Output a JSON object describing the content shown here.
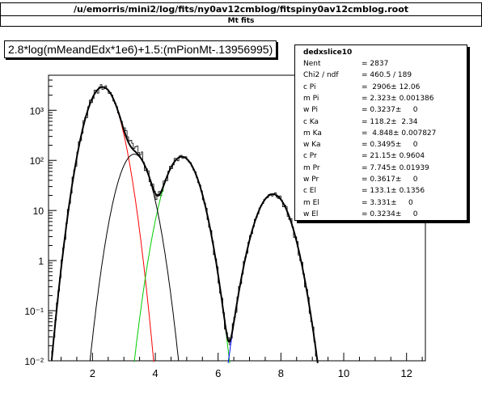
{
  "window": {
    "title": "/u/emorris/mini2/log/fits/ny0av12cmblog/fitspiny0av12cmblog.root",
    "subtitle": "Mt fits"
  },
  "formula": "2.8*log(mMeandEdx*1e6)+1.5:(mPionMt-.13956995)",
  "stats": {
    "name": "dedxslice10",
    "rows": [
      {
        "label": "Nent",
        "value": "= 2837"
      },
      {
        "label": "Chi2 / ndf",
        "value": "= 460.5 / 189"
      },
      {
        "label": "c Pi",
        "value": "=  2906± 12.06"
      },
      {
        "label": "m Pi",
        "value": "= 2.323± 0.001386"
      },
      {
        "label": "w Pi",
        "value": "= 0.3237±     0"
      },
      {
        "label": "c Ka",
        "value": "= 118.2±  2.34"
      },
      {
        "label": "m Ka",
        "value": "=  4.848± 0.007827"
      },
      {
        "label": "w Ka",
        "value": "= 0.3495±     0"
      },
      {
        "label": "c Pr",
        "value": "= 21.15± 0.9604"
      },
      {
        "label": "m Pr",
        "value": "= 7.745± 0.01939"
      },
      {
        "label": "w Pr",
        "value": "= 0.3617±     0"
      },
      {
        "label": "c El",
        "value": "= 133.1± 0.1356"
      },
      {
        "label": "m El",
        "value": "= 3.331±     0"
      },
      {
        "label": "w El",
        "value": "= 0.3234±     0"
      }
    ]
  },
  "chart_data": {
    "type": "line",
    "yscale": "log",
    "xlim": [
      0.6,
      12.6
    ],
    "ylim": [
      0.01,
      5000
    ],
    "xticks": [
      2,
      4,
      6,
      8,
      10,
      12
    ],
    "ytick_labels": [
      "10³",
      "10²",
      "10",
      "1",
      "10⁻¹",
      "10⁻²"
    ],
    "ytick_values": [
      1000,
      100,
      10,
      1,
      0.1,
      0.01
    ],
    "series": [
      {
        "label": "c Pi",
        "amp": 2906,
        "mean": 2.323,
        "sigma": 0.3237,
        "color": "#ff0000"
      },
      {
        "label": "c Ka",
        "amp": 118.2,
        "mean": 4.848,
        "sigma": 0.3495,
        "color": "#00cc00"
      },
      {
        "label": "c Pr",
        "amp": 21.15,
        "mean": 7.745,
        "sigma": 0.3617,
        "color": "#0000ff"
      },
      {
        "label": "c El",
        "amp": 133.1,
        "mean": 3.331,
        "sigma": 0.3234,
        "color": "#000000"
      }
    ]
  }
}
